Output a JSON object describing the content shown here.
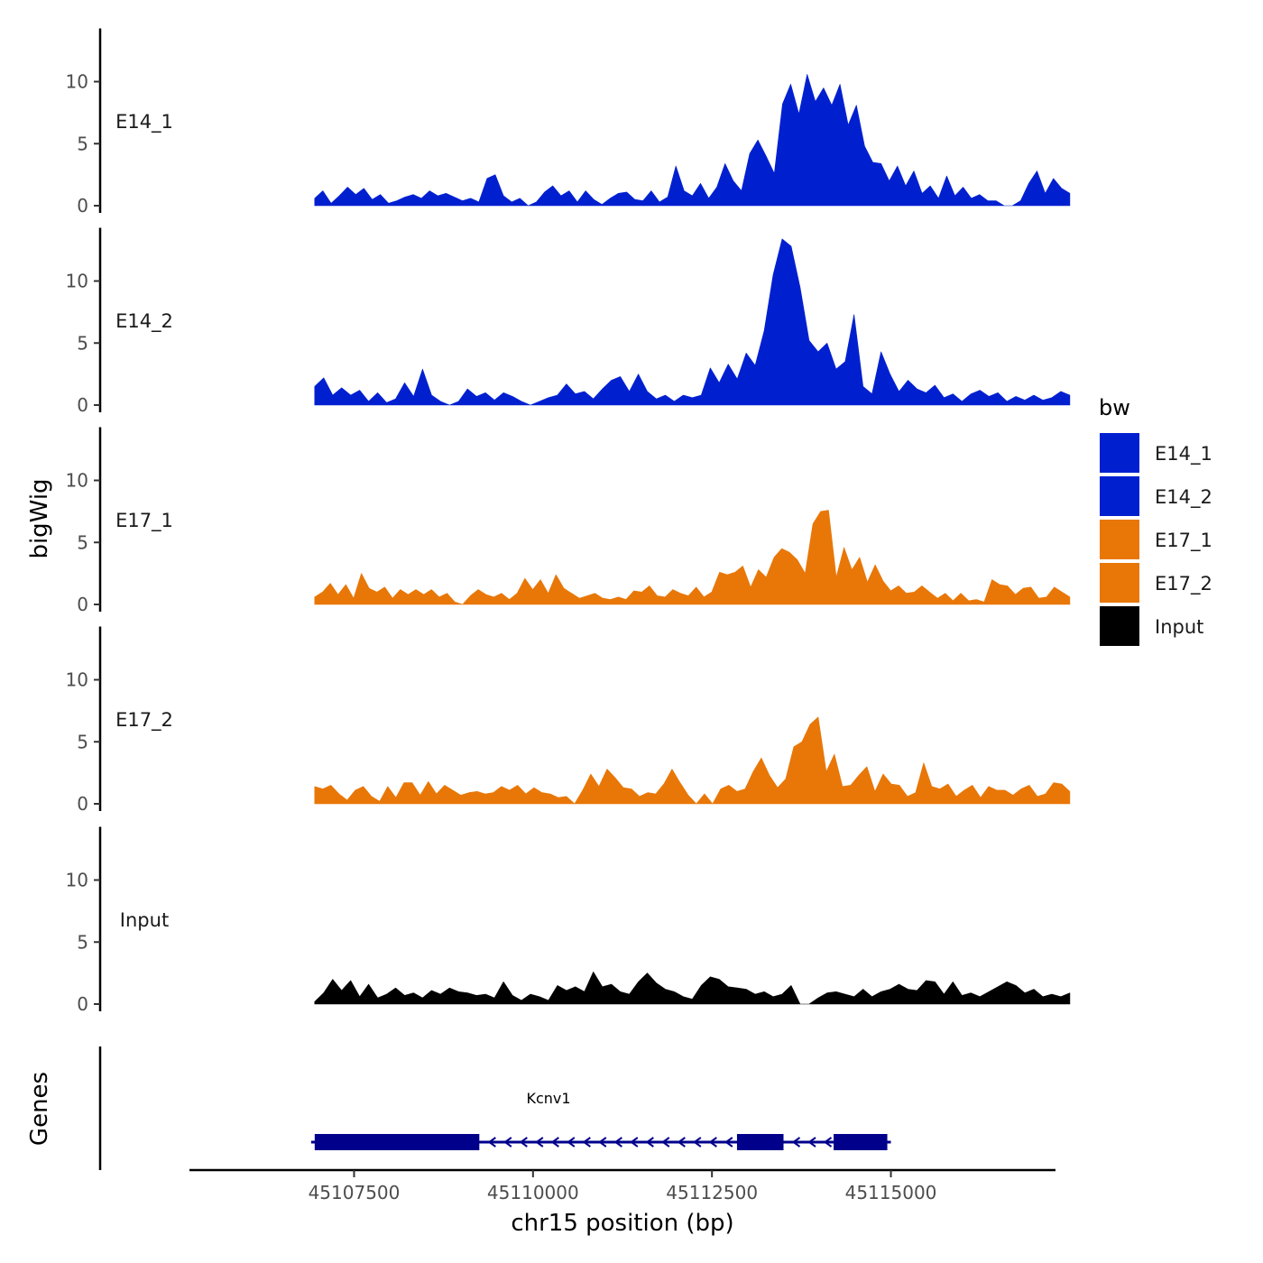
{
  "chart_data": {
    "type": "area",
    "layout": "stacked-tracks",
    "ylabel": "bigWig",
    "xlabel": "chr15 position (bp)",
    "x_range": [
      45105200,
      45117300
    ],
    "ylim": [
      0,
      14
    ],
    "y_ticks": [
      0,
      5,
      10
    ],
    "x_ticks": [
      45107500,
      45110000,
      45112500,
      45115000
    ],
    "x_tick_labels": [
      "45107500",
      "45110000",
      "45112500",
      "45115000"
    ],
    "data_x_start": 45106950,
    "data_x_end": 45117500,
    "series": [
      {
        "name": "E14_1",
        "label": "E14_1",
        "color": "#0020D0",
        "values": [
          0.6,
          1.2,
          0.2,
          0.8,
          1.5,
          0.9,
          1.4,
          0.5,
          0.9,
          0.2,
          0.4,
          0.7,
          0.9,
          0.6,
          1.2,
          0.8,
          1.0,
          0.7,
          0.4,
          0.6,
          0.3,
          2.2,
          2.5,
          0.8,
          0.3,
          0.6,
          0.0,
          0.3,
          1.1,
          1.6,
          0.8,
          1.2,
          0.3,
          1.2,
          0.5,
          0.1,
          0.6,
          1.0,
          1.1,
          0.5,
          0.4,
          1.2,
          0.3,
          0.7,
          3.2,
          1.2,
          0.8,
          1.8,
          0.6,
          1.5,
          3.4,
          2.0,
          1.2,
          4.2,
          5.3,
          4.0,
          2.6,
          8.2,
          9.8,
          7.4,
          10.6,
          8.4,
          9.5,
          8.1,
          9.8,
          6.5,
          8.1,
          4.8,
          3.5,
          3.4,
          2.0,
          3.2,
          1.6,
          2.8,
          1.0,
          1.6,
          0.6,
          2.4,
          0.8,
          1.5,
          0.6,
          0.9,
          0.4,
          0.4,
          0.0,
          0.0,
          0.4,
          1.8,
          2.8,
          1.0,
          2.2,
          1.4,
          1.0
        ]
      },
      {
        "name": "E14_2",
        "label": "E14_2",
        "color": "#0020D0",
        "values": [
          1.5,
          2.2,
          0.8,
          1.4,
          0.8,
          1.2,
          0.3,
          1.0,
          0.2,
          0.5,
          1.8,
          0.7,
          2.9,
          0.8,
          0.3,
          0.0,
          0.3,
          1.3,
          0.7,
          1.0,
          0.4,
          1.0,
          0.7,
          0.3,
          0.0,
          0.3,
          0.6,
          0.8,
          1.7,
          0.9,
          1.1,
          0.5,
          1.3,
          2.0,
          2.3,
          1.1,
          2.5,
          1.1,
          0.5,
          0.8,
          0.3,
          0.8,
          0.6,
          0.8,
          3.0,
          1.8,
          3.3,
          2.1,
          4.2,
          3.2,
          6.0,
          10.5,
          13.4,
          12.8,
          9.5,
          5.2,
          4.3,
          5.0,
          2.9,
          3.5,
          7.3,
          1.5,
          0.9,
          4.3,
          2.5,
          1.1,
          2.0,
          1.3,
          1.0,
          1.6,
          0.6,
          0.9,
          0.3,
          0.9,
          1.2,
          0.7,
          1.0,
          0.3,
          0.7,
          0.4,
          0.8,
          0.4,
          0.6,
          1.1,
          0.8
        ]
      },
      {
        "name": "E17_1",
        "label": "E17_1",
        "color": "#E87707",
        "values": [
          0.6,
          1.0,
          1.7,
          0.8,
          1.6,
          0.5,
          2.5,
          1.3,
          1.0,
          1.4,
          0.5,
          1.2,
          0.8,
          1.2,
          0.8,
          1.2,
          0.6,
          0.9,
          0.2,
          0.0,
          0.7,
          1.2,
          0.8,
          0.6,
          0.9,
          0.4,
          0.9,
          2.1,
          1.2,
          2.0,
          0.9,
          2.4,
          1.3,
          0.9,
          0.5,
          0.7,
          0.9,
          0.5,
          0.4,
          0.6,
          0.4,
          1.1,
          1.0,
          1.5,
          0.7,
          0.6,
          1.2,
          0.9,
          0.7,
          1.4,
          0.6,
          1.0,
          2.6,
          2.4,
          2.6,
          3.1,
          1.4,
          2.8,
          2.2,
          3.8,
          4.5,
          4.2,
          3.6,
          2.5,
          6.5,
          7.5,
          7.6,
          2.2,
          4.6,
          2.8,
          3.8,
          1.8,
          3.2,
          1.9,
          1.1,
          1.5,
          0.9,
          1.0,
          1.5,
          1.0,
          0.5,
          0.9,
          0.3,
          0.9,
          0.3,
          0.4,
          0.2,
          2.0,
          1.6,
          1.5,
          0.8,
          1.3,
          1.4,
          0.5,
          0.6,
          1.4,
          1.0,
          0.6
        ]
      },
      {
        "name": "E17_2",
        "label": "E17_2",
        "color": "#E87707",
        "values": [
          1.4,
          1.2,
          1.5,
          0.8,
          0.3,
          1.1,
          1.4,
          0.6,
          0.2,
          1.4,
          0.5,
          1.7,
          1.7,
          0.7,
          1.8,
          0.8,
          1.5,
          1.1,
          0.7,
          0.9,
          1.0,
          0.8,
          0.9,
          1.4,
          1.1,
          1.5,
          0.8,
          1.3,
          0.9,
          0.8,
          0.5,
          0.6,
          0.0,
          1.1,
          2.4,
          1.4,
          2.8,
          2.1,
          1.3,
          1.2,
          0.6,
          0.9,
          0.8,
          1.6,
          2.8,
          1.7,
          0.7,
          0.0,
          0.8,
          0.0,
          1.2,
          1.5,
          1.0,
          1.2,
          2.6,
          3.7,
          2.3,
          1.3,
          2.0,
          4.6,
          5.0,
          6.4,
          7.0,
          2.6,
          4.0,
          1.4,
          1.5,
          2.3,
          3.0,
          1.0,
          2.4,
          1.6,
          1.5,
          0.6,
          0.9,
          3.3,
          1.4,
          1.2,
          1.6,
          0.6,
          1.1,
          1.5,
          0.5,
          1.4,
          1.1,
          1.1,
          0.7,
          1.2,
          1.5,
          0.6,
          0.8,
          1.7,
          1.6,
          1.0
        ]
      },
      {
        "name": "Input",
        "label": "Input",
        "color": "#000000",
        "values": [
          0.2,
          0.9,
          2.0,
          1.1,
          1.9,
          0.6,
          1.6,
          0.5,
          0.8,
          1.3,
          0.7,
          0.9,
          0.5,
          1.1,
          0.8,
          1.3,
          1.0,
          0.9,
          0.7,
          0.8,
          0.5,
          1.8,
          0.7,
          0.3,
          0.8,
          0.6,
          0.3,
          1.5,
          1.1,
          1.4,
          1.0,
          2.6,
          1.4,
          1.6,
          1.0,
          0.8,
          1.8,
          2.5,
          1.7,
          1.2,
          1.0,
          0.6,
          0.4,
          1.5,
          2.2,
          2.0,
          1.4,
          1.3,
          1.2,
          0.8,
          1.0,
          0.6,
          0.8,
          1.5,
          0.0,
          0.0,
          0.5,
          0.9,
          1.0,
          0.8,
          0.6,
          1.2,
          0.6,
          1.0,
          1.2,
          1.6,
          1.2,
          1.1,
          1.9,
          1.8,
          0.8,
          1.8,
          0.7,
          0.9,
          0.6,
          1.0,
          1.4,
          1.8,
          1.5,
          0.9,
          1.2,
          0.6,
          0.8,
          0.6,
          0.9
        ]
      }
    ],
    "genes_track": {
      "label": "Genes",
      "gene_name": "Kcnv1",
      "strand": "-",
      "line_start": 45106900,
      "line_end": 45115000,
      "exons": [
        {
          "start": 45106950,
          "end": 45109250
        },
        {
          "start": 45112850,
          "end": 45113500
        },
        {
          "start": 45114200,
          "end": 45114950
        }
      ],
      "color": "#00008B"
    },
    "legend": {
      "title": "bw",
      "position": "right",
      "entries": [
        {
          "label": "E14_1",
          "color": "#0020D0"
        },
        {
          "label": "E14_2",
          "color": "#0020D0"
        },
        {
          "label": "E17_1",
          "color": "#E87707"
        },
        {
          "label": "E17_2",
          "color": "#E87707"
        },
        {
          "label": "Input",
          "color": "#000000"
        }
      ]
    }
  }
}
